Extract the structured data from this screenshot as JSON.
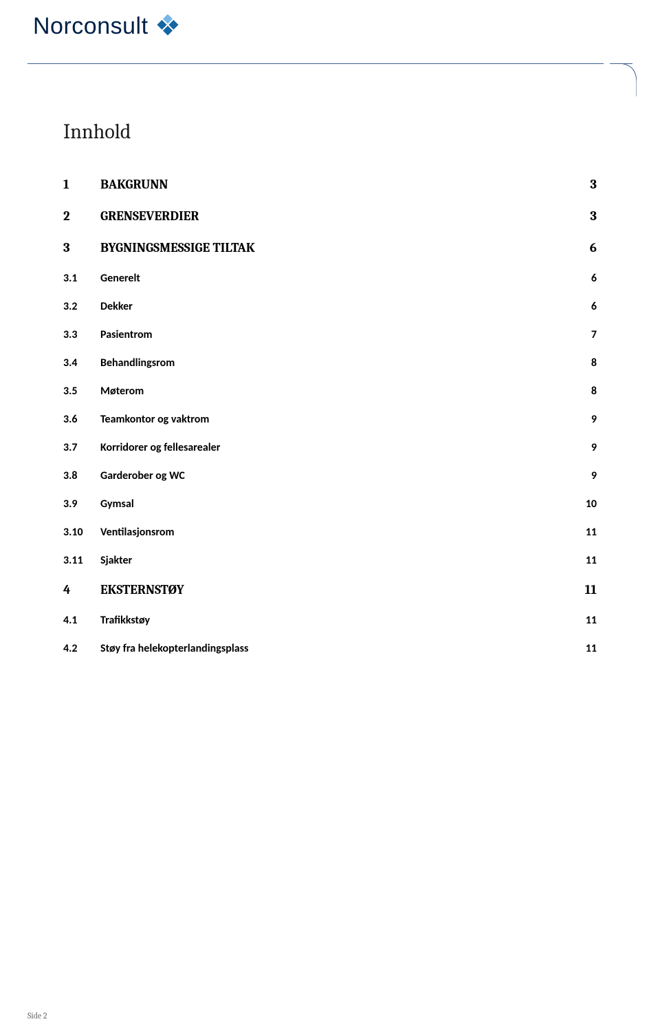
{
  "brand": "Norconsult",
  "colors": {
    "brand_text": "#002046",
    "logo_light": "#76b6e6",
    "logo_dark": "#1466a2",
    "rule": "#3d5f93",
    "text": "#000000",
    "footer_text": "#6a6a6a",
    "background": "#ffffff"
  },
  "title": "Innhold",
  "toc": [
    {
      "level": 1,
      "num": "1",
      "label": "BAKGRUNN",
      "page": "3"
    },
    {
      "level": 1,
      "num": "2",
      "label": "GRENSEVERDIER",
      "page": "3"
    },
    {
      "level": 1,
      "num": "3",
      "label": "BYGNINGSMESSIGE TILTAK",
      "page": "6"
    },
    {
      "level": 2,
      "num": "3.1",
      "label": "Generelt",
      "page": "6"
    },
    {
      "level": 2,
      "num": "3.2",
      "label": "Dekker",
      "page": "6"
    },
    {
      "level": 2,
      "num": "3.3",
      "label": "Pasientrom",
      "page": "7"
    },
    {
      "level": 2,
      "num": "3.4",
      "label": "Behandlingsrom",
      "page": "8"
    },
    {
      "level": 2,
      "num": "3.5",
      "label": "Møterom",
      "page": "8"
    },
    {
      "level": 2,
      "num": "3.6",
      "label": "Teamkontor og vaktrom",
      "page": "9"
    },
    {
      "level": 2,
      "num": "3.7",
      "label": "Korridorer og fellesarealer",
      "page": "9"
    },
    {
      "level": 2,
      "num": "3.8",
      "label": "Garderober og  WC",
      "page": "9"
    },
    {
      "level": 2,
      "num": "3.9",
      "label": "Gymsal",
      "page": "10"
    },
    {
      "level": 2,
      "num": "3.10",
      "label": "Ventilasjonsrom",
      "page": "11"
    },
    {
      "level": 2,
      "num": "3.11",
      "label": "Sjakter",
      "page": "11"
    },
    {
      "level": 1,
      "num": "4",
      "label": "EKSTERNSTØY",
      "page": "11"
    },
    {
      "level": 2,
      "num": "4.1",
      "label": "Trafikkstøy",
      "page": "11"
    },
    {
      "level": 2,
      "num": "4.2",
      "label": "Støy fra helekopterlandingsplass",
      "page": "11"
    }
  ],
  "footer": "Side 2"
}
